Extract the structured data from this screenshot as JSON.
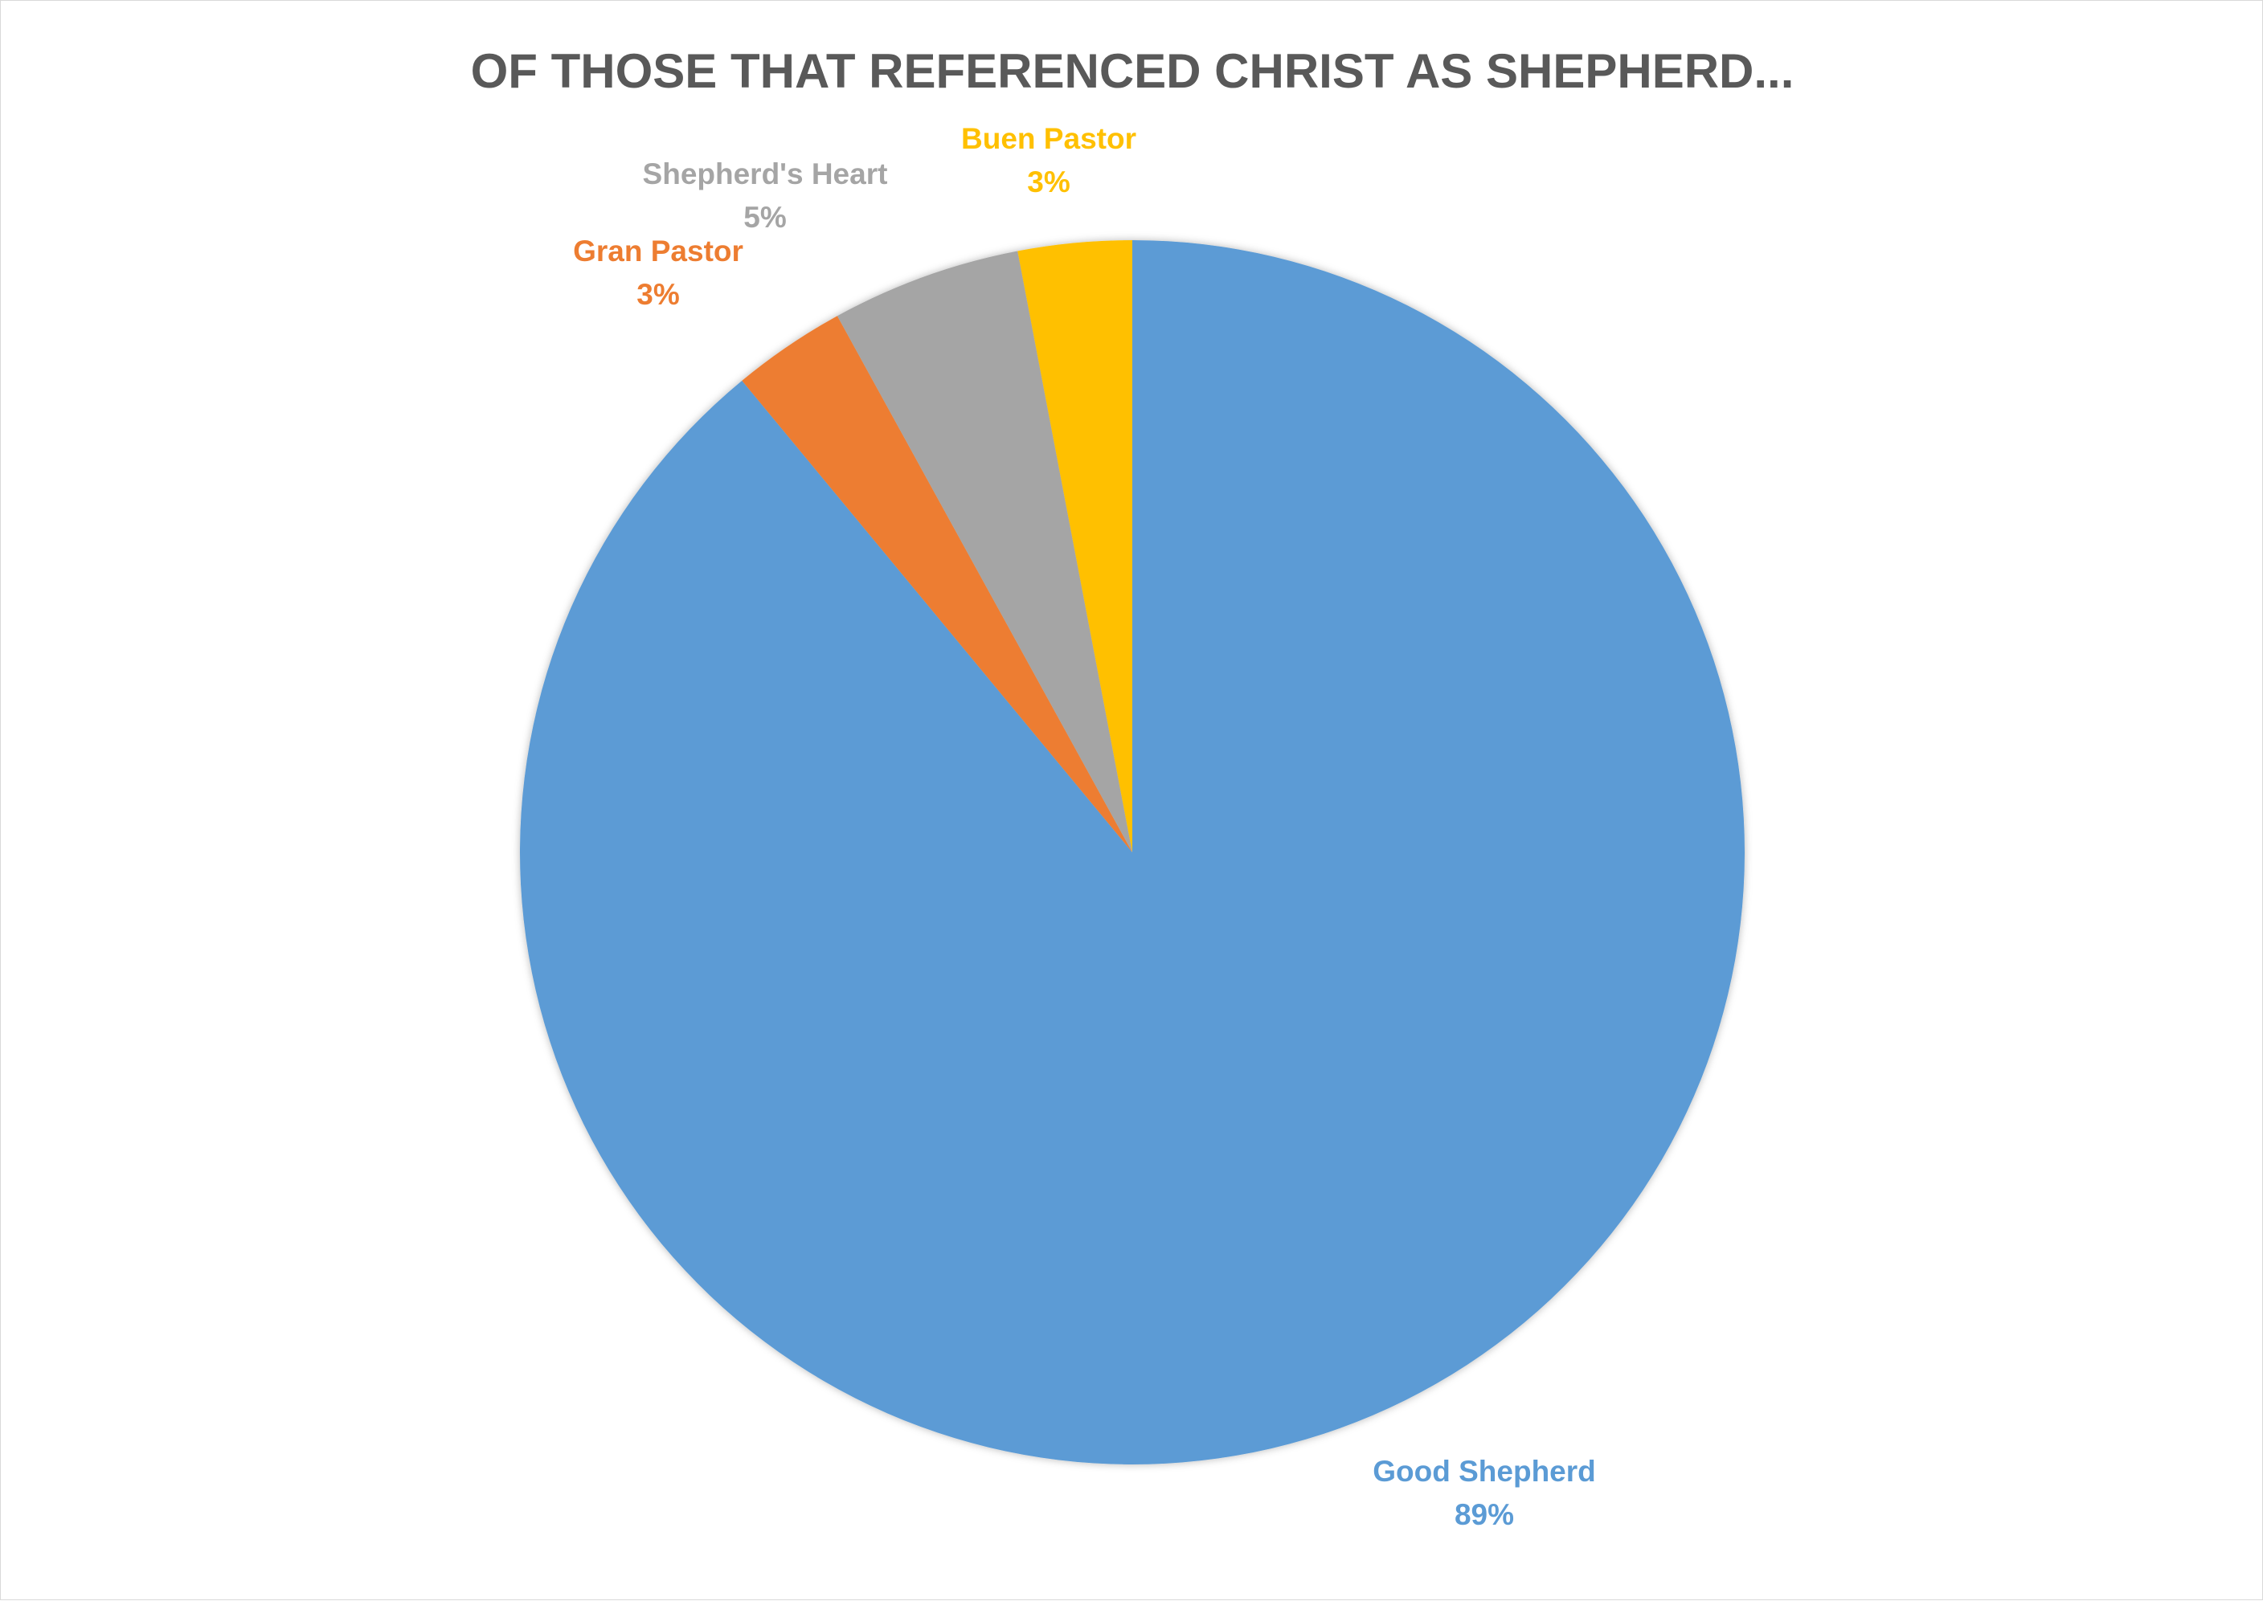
{
  "chart_data": {
    "type": "pie",
    "title": "OF THOSE THAT REFERENCED CHRIST AS SHEPHERD...",
    "start": "12 o'clock",
    "direction": "clockwise",
    "slices": [
      {
        "name": "Good Shepherd",
        "value": 89,
        "label": "89%",
        "color": "#5b9bd5"
      },
      {
        "name": "Gran Pastor",
        "value": 3,
        "label": "3%",
        "color": "#ed7d31"
      },
      {
        "name": "Shepherd's Heart",
        "value": 5,
        "label": "5%",
        "color": "#a5a5a5"
      },
      {
        "name": "Buen Pastor",
        "value": 3,
        "label": "3%",
        "color": "#ffc000"
      }
    ]
  }
}
